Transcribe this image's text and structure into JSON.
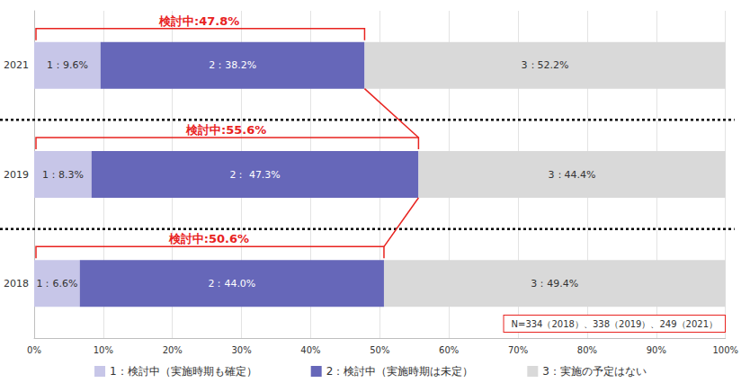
{
  "chart_data": {
    "type": "bar",
    "orientation": "horizontal",
    "stacked": true,
    "data_labels": true,
    "grid": true,
    "legend": "bottom",
    "categories": [
      "2018",
      "2019",
      "2021"
    ],
    "series": [
      {
        "name": "1：検討中（実施時期も確定）",
        "color": "#c7c6e8",
        "values": [
          6.6,
          8.3,
          9.6
        ],
        "value_labels": [
          "1：6.6%",
          "1：8.3%",
          "1：9.6%"
        ]
      },
      {
        "name": "2：検討中（実施時期は未定）",
        "color": "#6667b9",
        "values": [
          44.0,
          47.3,
          38.2
        ],
        "value_labels": [
          "2：44.0%",
          "2： 47.3%",
          "2：38.2%"
        ]
      },
      {
        "name": "3：実施の予定はない",
        "color": "#d9d9d9",
        "values": [
          49.4,
          44.4,
          52.2
        ],
        "value_labels": [
          "3：49.4%",
          "3：44.4%",
          "3：52.2%"
        ]
      }
    ],
    "xlim": [
      0,
      100
    ],
    "xticks": [
      {
        "value": 0,
        "label": "0%"
      },
      {
        "value": 10,
        "label": "10%"
      },
      {
        "value": 20,
        "label": "20%"
      },
      {
        "value": 30,
        "label": "30%"
      },
      {
        "value": 40,
        "label": "40%"
      },
      {
        "value": 50,
        "label": "50%"
      },
      {
        "value": 60,
        "label": "60%"
      },
      {
        "value": 70,
        "label": "70%"
      },
      {
        "value": 80,
        "label": "80%"
      },
      {
        "value": 90,
        "label": "90%"
      },
      {
        "value": 100,
        "label": "100%"
      }
    ],
    "annotations": [
      {
        "text": "検討中:47.8%",
        "category": "2021",
        "value": 47.8
      },
      {
        "text": "検討中:55.6%",
        "category": "2019",
        "value": 55.6
      },
      {
        "text": "検討中:50.6%",
        "category": "2018",
        "value": 50.6
      }
    ],
    "note": "N=334（2018）、338（2019）、249（2021）"
  }
}
